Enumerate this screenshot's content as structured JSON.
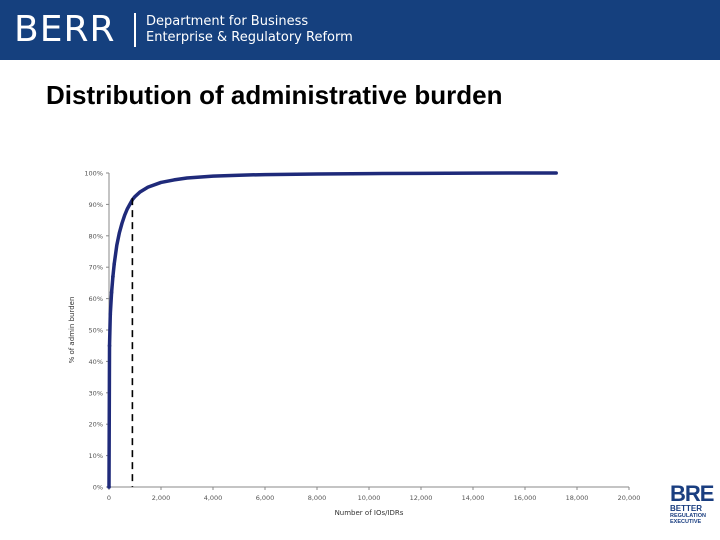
{
  "header": {
    "brand": "BERR",
    "department_line1": "Department for Business",
    "department_line2": "Enterprise & Regulatory Reform",
    "background_color": "#15407e"
  },
  "slide": {
    "title": "Distribution of administrative burden"
  },
  "chart_data": {
    "type": "line",
    "title": "",
    "xlabel": "Number of IOs/IDRs",
    "ylabel": "% of admin burden",
    "xlim": [
      0,
      20000
    ],
    "ylim": [
      0,
      100
    ],
    "x_ticks": [
      "0",
      "2,000",
      "4,000",
      "6,000",
      "8,000",
      "10,000",
      "12,000",
      "14,000",
      "16,000",
      "18,000",
      "20,000"
    ],
    "y_ticks": [
      "0%",
      "10%",
      "20%",
      "30%",
      "40%",
      "50%",
      "60%",
      "70%",
      "80%",
      "90%",
      "100%"
    ],
    "series": [
      {
        "color": "#1f2a7a",
        "x": [
          0,
          20,
          50,
          100,
          150,
          200,
          300,
          400,
          500,
          600,
          700,
          800,
          900,
          1000,
          1200,
          1500,
          2000,
          2500,
          3000,
          4000,
          5000,
          6000,
          8000,
          10000,
          12000,
          14000,
          16000,
          17200
        ],
        "y": [
          0,
          45,
          55,
          62,
          67,
          71,
          77,
          81,
          84,
          86.5,
          88.5,
          90,
          91.5,
          92.5,
          94,
          95.5,
          97,
          97.8,
          98.4,
          99,
          99.3,
          99.5,
          99.7,
          99.8,
          99.9,
          99.95,
          100,
          100
        ]
      }
    ],
    "reference_line": {
      "x": 900,
      "style": "dashed",
      "color": "#000000"
    },
    "grid": false,
    "legend": "none"
  },
  "logo": {
    "main": "BRE",
    "line1": "BETTER",
    "line2": "REGULATION",
    "line3": "EXECUTIVE",
    "color": "#1a3e80"
  }
}
